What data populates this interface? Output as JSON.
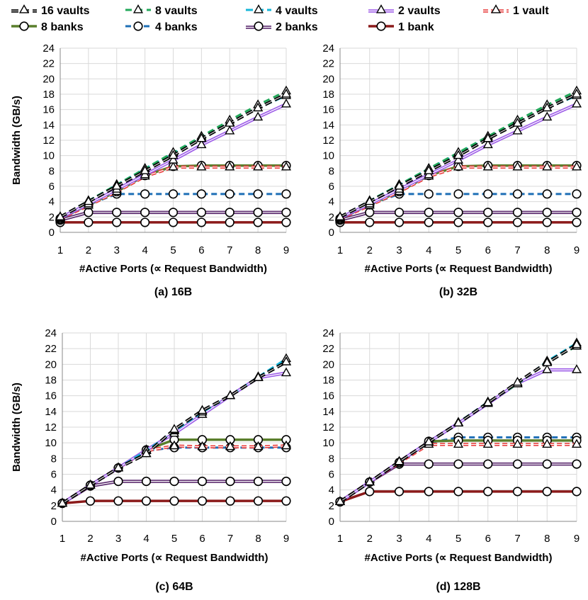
{
  "legend": {
    "rows": [
      [
        "16 vaults",
        "8 vaults",
        "4 vaults",
        "2 vaults",
        "1 vault"
      ],
      [
        "8 banks",
        "4 banks",
        "2 banks",
        "1 bank"
      ]
    ]
  },
  "series_styles": {
    "16 vaults": {
      "color": "#000000",
      "dash": "10,5",
      "width": 3,
      "marker": "triangle",
      "twin": "#cccccc"
    },
    "8 vaults": {
      "color": "#22a85a",
      "dash": "9,6",
      "width": 3,
      "marker": "triangle"
    },
    "4 vaults": {
      "color": "#17b6d8",
      "dash": "10,5",
      "width": 3,
      "marker": "triangle"
    },
    "2 vaults": {
      "color": "#9f5fe8",
      "dash": "",
      "width": 3,
      "marker": "triangle",
      "twin": "#ffffff"
    },
    "1 vault": {
      "color": "#e84040",
      "dash": "7,4",
      "width": 3,
      "marker": "triangle",
      "twin": "#ffffff"
    },
    "8 banks": {
      "color": "#5a7f2c",
      "dash": "",
      "width": 3.5,
      "marker": "circle"
    },
    "4 banks": {
      "color": "#1e6fb6",
      "dash": "8,5",
      "width": 3,
      "marker": "circle"
    },
    "2 banks": {
      "color": "#5b2a6e",
      "dash": "",
      "width": 3,
      "marker": "circle",
      "twin": "#ffffff"
    },
    "1 bank": {
      "color": "#8b1a1a",
      "dash": "",
      "width": 3.5,
      "marker": "circle"
    }
  },
  "chart_data": [
    {
      "type": "line",
      "title": "(a) 16B",
      "xlabel": "#Active Ports (∝ Request Bandwidth)",
      "ylabel": "Bandwidth (GB/s)",
      "x": [
        1,
        2,
        3,
        4,
        5,
        6,
        7,
        8,
        9
      ],
      "xlim": [
        1,
        9
      ],
      "ylim": [
        0,
        24
      ],
      "yticks": [
        0,
        2,
        4,
        6,
        8,
        10,
        12,
        14,
        16,
        18,
        20,
        22,
        24
      ],
      "series": [
        {
          "name": "16 vaults",
          "values": [
            2.0,
            4.0,
            6.0,
            8.0,
            10.0,
            12.2,
            14.2,
            16.2,
            18.0
          ]
        },
        {
          "name": "8 vaults",
          "values": [
            2.0,
            4.1,
            6.2,
            8.3,
            10.4,
            12.5,
            14.6,
            16.6,
            18.4
          ]
        },
        {
          "name": "4 vaults",
          "values": [
            2.0,
            4.1,
            6.2,
            8.3,
            10.3,
            12.3,
            14.3,
            16.2,
            17.8
          ]
        },
        {
          "name": "2 vaults",
          "values": [
            1.9,
            3.7,
            5.6,
            7.5,
            9.4,
            11.4,
            13.2,
            15.0,
            16.7
          ]
        },
        {
          "name": "1 vault",
          "values": [
            1.8,
            3.5,
            5.3,
            7.3,
            8.5,
            8.5,
            8.5,
            8.5,
            8.5
          ]
        },
        {
          "name": "8 banks",
          "values": [
            1.8,
            3.6,
            5.3,
            7.4,
            8.6,
            8.7,
            8.7,
            8.7,
            8.7
          ]
        },
        {
          "name": "4 banks",
          "values": [
            1.7,
            3.6,
            5.0,
            5.0,
            5.0,
            5.0,
            5.0,
            5.0,
            5.0
          ]
        },
        {
          "name": "2 banks",
          "values": [
            1.6,
            2.6,
            2.6,
            2.6,
            2.6,
            2.6,
            2.6,
            2.6,
            2.6
          ]
        },
        {
          "name": "1 bank",
          "values": [
            1.3,
            1.3,
            1.3,
            1.3,
            1.3,
            1.3,
            1.3,
            1.3,
            1.3
          ]
        }
      ]
    },
    {
      "type": "line",
      "title": "(b) 32B",
      "xlabel": "#Active Ports (∝ Request Bandwidth)",
      "ylabel": "",
      "x": [
        1,
        2,
        3,
        4,
        5,
        6,
        7,
        8,
        9
      ],
      "xlim": [
        1,
        9
      ],
      "ylim": [
        0,
        24
      ],
      "yticks": [
        0,
        2,
        4,
        6,
        8,
        10,
        12,
        14,
        16,
        18,
        20,
        22,
        24
      ],
      "series": [
        {
          "name": "16 vaults",
          "values": [
            2.0,
            4.0,
            6.0,
            8.0,
            10.0,
            12.2,
            14.2,
            16.2,
            18.0
          ]
        },
        {
          "name": "8 vaults",
          "values": [
            2.0,
            4.1,
            6.2,
            8.3,
            10.4,
            12.5,
            14.6,
            16.6,
            18.4
          ]
        },
        {
          "name": "4 vaults",
          "values": [
            2.0,
            4.1,
            6.2,
            8.3,
            10.3,
            12.3,
            14.3,
            16.2,
            17.8
          ]
        },
        {
          "name": "2 vaults",
          "values": [
            1.9,
            3.7,
            5.6,
            7.5,
            9.4,
            11.4,
            13.2,
            15.0,
            16.7
          ]
        },
        {
          "name": "1 vault",
          "values": [
            1.8,
            3.5,
            5.3,
            7.3,
            8.5,
            8.5,
            8.5,
            8.5,
            8.5
          ]
        },
        {
          "name": "8 banks",
          "values": [
            1.8,
            3.6,
            5.3,
            7.4,
            8.6,
            8.7,
            8.7,
            8.7,
            8.7
          ]
        },
        {
          "name": "4 banks",
          "values": [
            1.7,
            3.6,
            5.0,
            5.0,
            5.0,
            5.0,
            5.0,
            5.0,
            5.0
          ]
        },
        {
          "name": "2 banks",
          "values": [
            1.6,
            2.6,
            2.6,
            2.6,
            2.6,
            2.6,
            2.6,
            2.6,
            2.6
          ]
        },
        {
          "name": "1 bank",
          "values": [
            1.3,
            1.3,
            1.3,
            1.3,
            1.3,
            1.3,
            1.3,
            1.3,
            1.3
          ]
        }
      ]
    },
    {
      "type": "line",
      "title": "(c) 64B",
      "xlabel": "#Active Ports (∝ Request Bandwidth)",
      "ylabel": "Bandwidth (GB/s)",
      "x": [
        1,
        2,
        3,
        4,
        5,
        6,
        7,
        8,
        9
      ],
      "xlim": [
        1,
        9
      ],
      "ylim": [
        0,
        24
      ],
      "yticks": [
        0,
        2,
        4,
        6,
        8,
        10,
        12,
        14,
        16,
        18,
        20,
        22,
        24
      ],
      "series": [
        {
          "name": "16 vaults",
          "values": [
            2.3,
            4.6,
            6.8,
            8.6,
            11.7,
            14.1,
            16.0,
            18.3,
            20.3
          ]
        },
        {
          "name": "8 vaults",
          "values": [
            2.3,
            4.6,
            6.8,
            8.6,
            11.6,
            14.1,
            16.0,
            18.3,
            20.3
          ]
        },
        {
          "name": "4 vaults",
          "values": [
            2.3,
            4.6,
            6.8,
            9.0,
            11.5,
            13.9,
            16.0,
            18.4,
            20.7
          ]
        },
        {
          "name": "2 vaults",
          "values": [
            2.3,
            4.6,
            6.8,
            9.1,
            11.2,
            13.6,
            16.0,
            18.3,
            18.9
          ]
        },
        {
          "name": "1 vault",
          "values": [
            2.3,
            4.6,
            6.8,
            9.0,
            9.6,
            9.5,
            9.5,
            9.5,
            9.6
          ]
        },
        {
          "name": "8 banks",
          "values": [
            2.3,
            4.6,
            6.8,
            9.1,
            10.4,
            10.4,
            10.4,
            10.4,
            10.4
          ]
        },
        {
          "name": "4 banks",
          "values": [
            2.3,
            4.6,
            6.8,
            9.0,
            9.4,
            9.4,
            9.4,
            9.4,
            9.4
          ]
        },
        {
          "name": "2 banks",
          "values": [
            2.3,
            4.5,
            5.1,
            5.1,
            5.1,
            5.1,
            5.1,
            5.1,
            5.1
          ]
        },
        {
          "name": "1 bank",
          "values": [
            2.3,
            2.6,
            2.6,
            2.6,
            2.6,
            2.6,
            2.6,
            2.6,
            2.6
          ]
        }
      ]
    },
    {
      "type": "line",
      "title": "(d) 128B",
      "xlabel": "#Active Ports (∝ Request Bandwidth)",
      "ylabel": "",
      "x": [
        1,
        2,
        3,
        4,
        5,
        6,
        7,
        8,
        9
      ],
      "xlim": [
        1,
        9
      ],
      "ylim": [
        0,
        24
      ],
      "yticks": [
        0,
        2,
        4,
        6,
        8,
        10,
        12,
        14,
        16,
        18,
        20,
        22,
        24
      ],
      "series": [
        {
          "name": "16 vaults",
          "values": [
            2.5,
            5.0,
            7.6,
            10.1,
            12.5,
            15.1,
            17.7,
            20.2,
            22.5
          ]
        },
        {
          "name": "8 vaults",
          "values": [
            2.5,
            5.0,
            7.6,
            10.1,
            12.5,
            15.1,
            17.5,
            20.3,
            22.3
          ]
        },
        {
          "name": "4 vaults",
          "values": [
            2.5,
            5.0,
            7.6,
            10.1,
            12.6,
            15.2,
            17.5,
            20.4,
            22.7
          ]
        },
        {
          "name": "2 vaults",
          "values": [
            2.5,
            5.0,
            7.6,
            10.1,
            12.5,
            15.0,
            17.6,
            19.3,
            19.3
          ]
        },
        {
          "name": "1 vault",
          "values": [
            2.5,
            5.0,
            7.5,
            9.8,
            9.8,
            9.8,
            9.8,
            9.8,
            9.8
          ]
        },
        {
          "name": "8 banks",
          "values": [
            2.5,
            5.0,
            7.5,
            10.2,
            10.3,
            10.3,
            10.3,
            10.3,
            10.3
          ]
        },
        {
          "name": "4 banks",
          "values": [
            2.5,
            5.0,
            7.5,
            10.0,
            10.7,
            10.7,
            10.7,
            10.7,
            10.7
          ]
        },
        {
          "name": "2 banks",
          "values": [
            2.5,
            5.0,
            7.3,
            7.3,
            7.3,
            7.3,
            7.3,
            7.3,
            7.3
          ]
        },
        {
          "name": "1 bank",
          "values": [
            2.5,
            3.8,
            3.8,
            3.8,
            3.8,
            3.8,
            3.8,
            3.8,
            3.8
          ]
        }
      ]
    }
  ]
}
